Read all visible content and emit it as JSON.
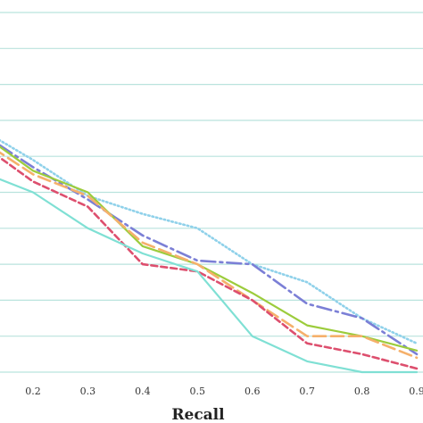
{
  "chart_data": {
    "type": "line",
    "title": "",
    "xlabel": "Recall",
    "ylabel": "",
    "xlim": [
      0.1,
      0.9
    ],
    "ylim": [
      0.0,
      1.0
    ],
    "grid": "horizontal",
    "legend": "none",
    "x_ticks": [
      "0.2",
      "0.3",
      "0.4",
      "0.5",
      "0.6",
      "0.7",
      "0.8",
      "0.9"
    ],
    "y_gridlines": [
      0.1,
      0.2,
      0.3,
      0.4,
      0.5,
      0.6,
      0.7,
      0.8,
      0.9,
      1.0
    ],
    "series": [
      {
        "color": "#8fd1ea",
        "style": "dotted",
        "x": [
          0.1,
          0.2,
          0.3,
          0.4,
          0.5,
          0.6,
          0.7,
          0.8,
          0.9
        ],
        "y": [
          0.68,
          0.59,
          0.49,
          0.44,
          0.4,
          0.3,
          0.25,
          0.15,
          0.08
        ]
      },
      {
        "color": "#7b7fd6",
        "style": "dashdot",
        "x": [
          0.1,
          0.2,
          0.3,
          0.4,
          0.5,
          0.6,
          0.7,
          0.8,
          0.9
        ],
        "y": [
          0.67,
          0.57,
          0.48,
          0.38,
          0.31,
          0.3,
          0.19,
          0.15,
          0.05
        ]
      },
      {
        "color": "#9ccc3c",
        "style": "solid",
        "x": [
          0.1,
          0.2,
          0.3,
          0.4,
          0.5,
          0.6,
          0.7,
          0.8,
          0.9
        ],
        "y": [
          0.67,
          0.56,
          0.5,
          0.35,
          0.3,
          0.22,
          0.13,
          0.1,
          0.06
        ]
      },
      {
        "color": "#f5b06b",
        "style": "longdash",
        "x": [
          0.1,
          0.2,
          0.3,
          0.4,
          0.5,
          0.6,
          0.7,
          0.8,
          0.9
        ],
        "y": [
          0.65,
          0.55,
          0.49,
          0.36,
          0.3,
          0.2,
          0.1,
          0.1,
          0.04
        ]
      },
      {
        "color": "#dd4f6e",
        "style": "dashed",
        "x": [
          0.1,
          0.2,
          0.3,
          0.4,
          0.5,
          0.6,
          0.7,
          0.8,
          0.9
        ],
        "y": [
          0.64,
          0.53,
          0.46,
          0.3,
          0.28,
          0.2,
          0.08,
          0.05,
          0.01
        ]
      },
      {
        "color": "#7fe0d4",
        "style": "solid",
        "x": [
          0.1,
          0.2,
          0.3,
          0.4,
          0.5,
          0.6,
          0.7,
          0.8,
          0.9
        ],
        "y": [
          0.56,
          0.5,
          0.4,
          0.33,
          0.28,
          0.1,
          0.03,
          0.0,
          0.0
        ]
      }
    ]
  }
}
